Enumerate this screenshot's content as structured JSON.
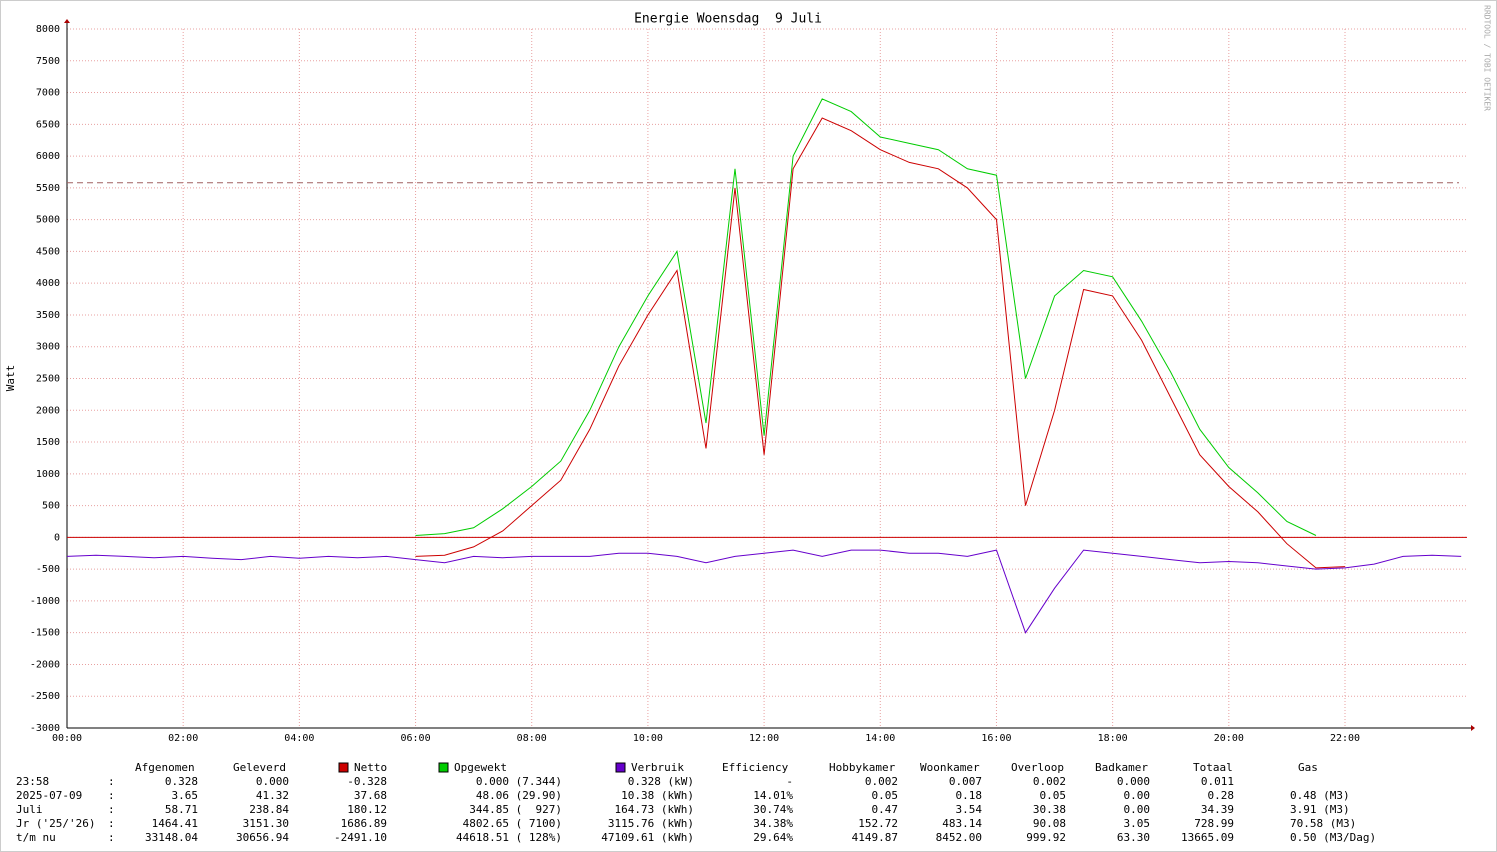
{
  "chart_data": {
    "type": "line",
    "title": "Energie Woensdag  9 Juli",
    "y_label": "Watt",
    "watermark": "RRDTOOL / TOBI OETIKER",
    "x": [
      0,
      0.5,
      1,
      1.5,
      2,
      2.5,
      3,
      3.5,
      4,
      4.5,
      5,
      5.5,
      6,
      6.5,
      7,
      7.5,
      8,
      8.5,
      9,
      9.5,
      10,
      10.5,
      11,
      11.5,
      12,
      12.5,
      13,
      13.5,
      14,
      14.5,
      15,
      15.5,
      16,
      16.5,
      17,
      17.5,
      18,
      18.5,
      19,
      19.5,
      20,
      20.5,
      21,
      21.5,
      22,
      22.5,
      23,
      23.5,
      24
    ],
    "xlim": [
      0,
      24.1
    ],
    "xticks": [
      {
        "value": 0,
        "label": "00:00"
      },
      {
        "value": 2,
        "label": "02:00"
      },
      {
        "value": 4,
        "label": "04:00"
      },
      {
        "value": 6,
        "label": "06:00"
      },
      {
        "value": 8,
        "label": "08:00"
      },
      {
        "value": 10,
        "label": "10:00"
      },
      {
        "value": 12,
        "label": "12:00"
      },
      {
        "value": 14,
        "label": "14:00"
      },
      {
        "value": 16,
        "label": "16:00"
      },
      {
        "value": 18,
        "label": "18:00"
      },
      {
        "value": 20,
        "label": "20:00"
      },
      {
        "value": 22,
        "label": "22:00"
      }
    ],
    "ylim": [
      -3000,
      8000
    ],
    "yticks": [
      -3000,
      -2500,
      -2000,
      -1500,
      -1000,
      -500,
      0,
      500,
      1000,
      1500,
      2000,
      2500,
      3000,
      3500,
      4000,
      4500,
      5000,
      5500,
      6000,
      6500,
      7000,
      7500,
      8000
    ],
    "grid": true,
    "reference_line": 5580,
    "series": [
      {
        "name": "Opgewekt",
        "color": "#00cc00",
        "values": [
          null,
          null,
          null,
          null,
          null,
          null,
          null,
          null,
          null,
          null,
          null,
          null,
          30,
          60,
          150,
          450,
          800,
          1200,
          2000,
          3000,
          3800,
          4500,
          1800,
          5800,
          1600,
          6000,
          6900,
          6700,
          6300,
          6200,
          6100,
          5800,
          5700,
          2500,
          3800,
          4200,
          4100,
          3400,
          2600,
          1700,
          1100,
          700,
          250,
          30,
          null,
          null,
          null,
          null,
          null
        ]
      },
      {
        "name": "Netto",
        "color": "#cc0000",
        "values": [
          null,
          null,
          null,
          null,
          null,
          null,
          null,
          null,
          null,
          null,
          null,
          null,
          -300,
          -280,
          -150,
          100,
          500,
          900,
          1700,
          2700,
          3500,
          4200,
          1400,
          5500,
          1300,
          5800,
          6600,
          6400,
          6100,
          5900,
          5800,
          5500,
          5000,
          500,
          2000,
          3900,
          3800,
          3100,
          2200,
          1300,
          800,
          400,
          -100,
          -480,
          -460,
          null,
          null,
          null,
          null
        ]
      },
      {
        "name": "Verbruik",
        "color": "#6600cc",
        "values": [
          -300,
          -280,
          -300,
          -320,
          -300,
          -330,
          -350,
          -300,
          -330,
          -300,
          -320,
          -300,
          -350,
          -400,
          -300,
          -320,
          -300,
          -300,
          -300,
          -250,
          -250,
          -300,
          -400,
          -300,
          -250,
          -200,
          -300,
          -200,
          -200,
          -250,
          -250,
          -300,
          -200,
          -1500,
          -800,
          -200,
          -250,
          -300,
          -350,
          -400,
          -380,
          -400,
          -450,
          -500,
          -480,
          -420,
          -300,
          -280,
          -300
        ]
      }
    ]
  },
  "table": {
    "headers": [
      "Afgenomen",
      "Geleverd",
      "Efficiency",
      "Hobbykamer",
      "Woonkamer",
      "Overloop",
      "Badkamer",
      "Totaal",
      "Gas"
    ],
    "separator": ":",
    "rows": [
      [
        "23:58",
        "0.328",
        "0.000",
        "-0.328",
        "0.000 (7.344)",
        "0.328 (kW)",
        "-",
        "0.002",
        "0.007",
        "0.002",
        "0.000",
        "0.011"
      ],
      [
        "2025-07-09",
        "3.65",
        "41.32",
        "37.68",
        "48.06 (29.90)",
        "10.38 (kWh)",
        "14.01%",
        "0.05",
        "0.18",
        "0.05",
        "0.00",
        "0.28",
        "0.48 (M3)"
      ],
      [
        "Juli",
        "58.71",
        "238.84",
        "180.12",
        "344.85 (  927)",
        "164.73 (kWh)",
        "30.74%",
        "0.47",
        "3.54",
        "30.38",
        "0.00",
        "34.39",
        "3.91 (M3)"
      ],
      [
        "Jr ('25/'26)",
        "1464.41",
        "3151.30",
        "1686.89",
        "4802.65 ( 7100)",
        "3115.76 (kWh)",
        "34.38%",
        "152.72",
        "483.14",
        "90.08",
        "3.05",
        "728.99",
        "70.58 (M3)"
      ],
      [
        "t/m nu",
        "33148.04",
        "30656.94",
        "-2491.10",
        "44618.51 ( 128%)",
        "47109.61 (kWh)",
        "29.64%",
        "4149.87",
        "8452.00",
        "999.92",
        "63.30",
        "13665.09",
        "0.50 (M3/Dag)"
      ]
    ]
  }
}
